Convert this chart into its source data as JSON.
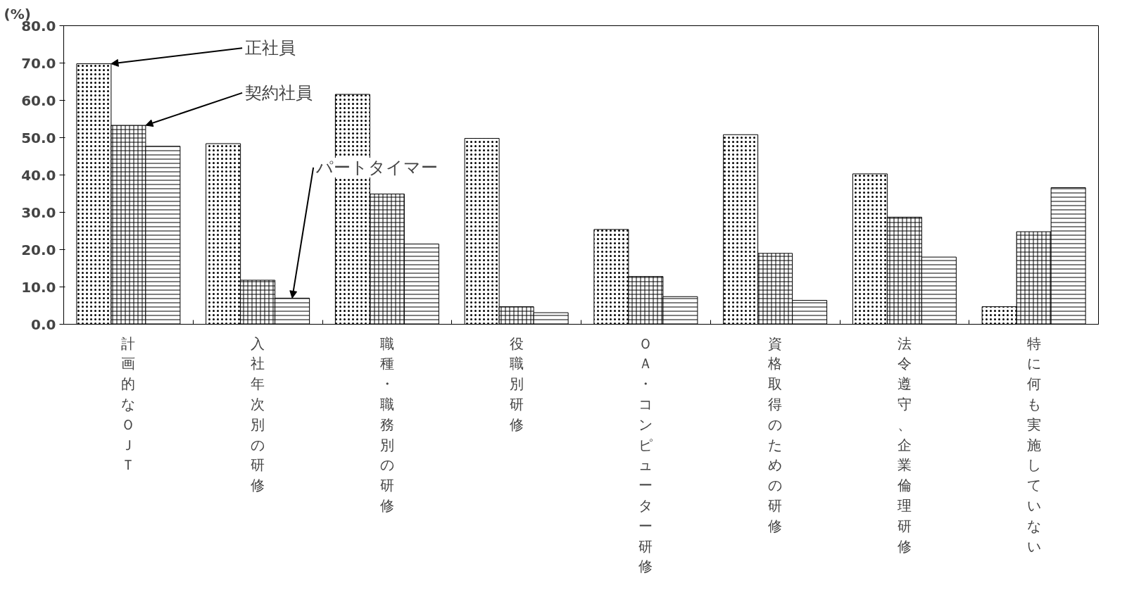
{
  "chart_data": {
    "type": "bar",
    "ylabel": "(%)",
    "categories": [
      "計画的なＯＪＴ",
      "入社年次別の研修",
      "職種・職務別の研修",
      "役職別研修",
      "ＯＡ・コンピューター研修",
      "資格取得のための研修",
      "法令遵守、企業倫理研修",
      "特に何も実施していない"
    ],
    "series": [
      {
        "name": "正社員",
        "color": "#000000",
        "values": [
          69.8,
          48.4,
          61.6,
          49.8,
          25.4,
          50.8,
          40.3,
          4.7
        ]
      },
      {
        "name": "契約社員",
        "color": "#000000",
        "values": [
          53.3,
          11.8,
          34.9,
          4.7,
          12.8,
          19.0,
          28.7,
          24.8
        ]
      },
      {
        "name": "パートタイマー",
        "color": "#000000",
        "values": [
          47.7,
          7.0,
          21.5,
          3.1,
          7.4,
          6.4,
          18.0,
          36.6
        ]
      }
    ],
    "ylim": [
      0,
      80
    ],
    "yticks": [
      {
        "value": 0,
        "label": "0.0"
      },
      {
        "value": 10,
        "label": "10.0"
      },
      {
        "value": 20,
        "label": "20.0"
      },
      {
        "value": 30,
        "label": "30.0"
      },
      {
        "value": 40,
        "label": "40.0"
      },
      {
        "value": 50,
        "label": "50.0"
      },
      {
        "value": 60,
        "label": "60.0"
      },
      {
        "value": 70,
        "label": "70.0"
      },
      {
        "value": 80,
        "label": "80.0"
      }
    ],
    "grid": false
  }
}
